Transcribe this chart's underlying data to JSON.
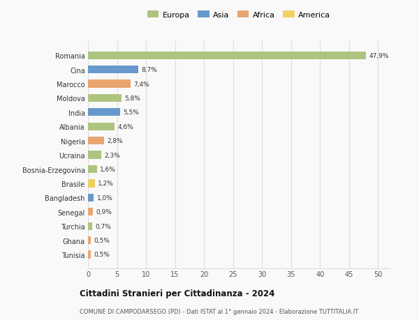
{
  "countries": [
    "Romania",
    "Cina",
    "Marocco",
    "Moldova",
    "India",
    "Albania",
    "Nigeria",
    "Ucraina",
    "Bosnia-Erzegovina",
    "Brasile",
    "Bangladesh",
    "Senegal",
    "Turchia",
    "Ghana",
    "Tunisia"
  ],
  "values": [
    47.9,
    8.7,
    7.4,
    5.8,
    5.5,
    4.6,
    2.8,
    2.3,
    1.6,
    1.2,
    1.0,
    0.9,
    0.7,
    0.5,
    0.5
  ],
  "labels": [
    "47,9%",
    "8,7%",
    "7,4%",
    "5,8%",
    "5,5%",
    "4,6%",
    "2,8%",
    "2,3%",
    "1,6%",
    "1,2%",
    "1,0%",
    "0,9%",
    "0,7%",
    "0,5%",
    "0,5%"
  ],
  "continents": [
    "Europa",
    "Asia",
    "Africa",
    "Europa",
    "Asia",
    "Europa",
    "Africa",
    "Europa",
    "Europa",
    "America",
    "Asia",
    "Africa",
    "Europa",
    "Africa",
    "Africa"
  ],
  "continent_colors": {
    "Europa": "#adc47e",
    "Asia": "#6699cc",
    "Africa": "#e8a570",
    "America": "#f0d060"
  },
  "title1": "Cittadini Stranieri per Cittadinanza - 2024",
  "title2": "COMUNE DI CAMPODARSEGO (PD) - Dati ISTAT al 1° gennaio 2024 - Elaborazione TUTTITALIA.IT",
  "xlim": [
    0,
    52
  ],
  "xticks": [
    0,
    5,
    10,
    15,
    20,
    25,
    30,
    35,
    40,
    45,
    50
  ],
  "background_color": "#f9f9f9",
  "grid_color": "#dddddd",
  "bar_height": 0.55
}
